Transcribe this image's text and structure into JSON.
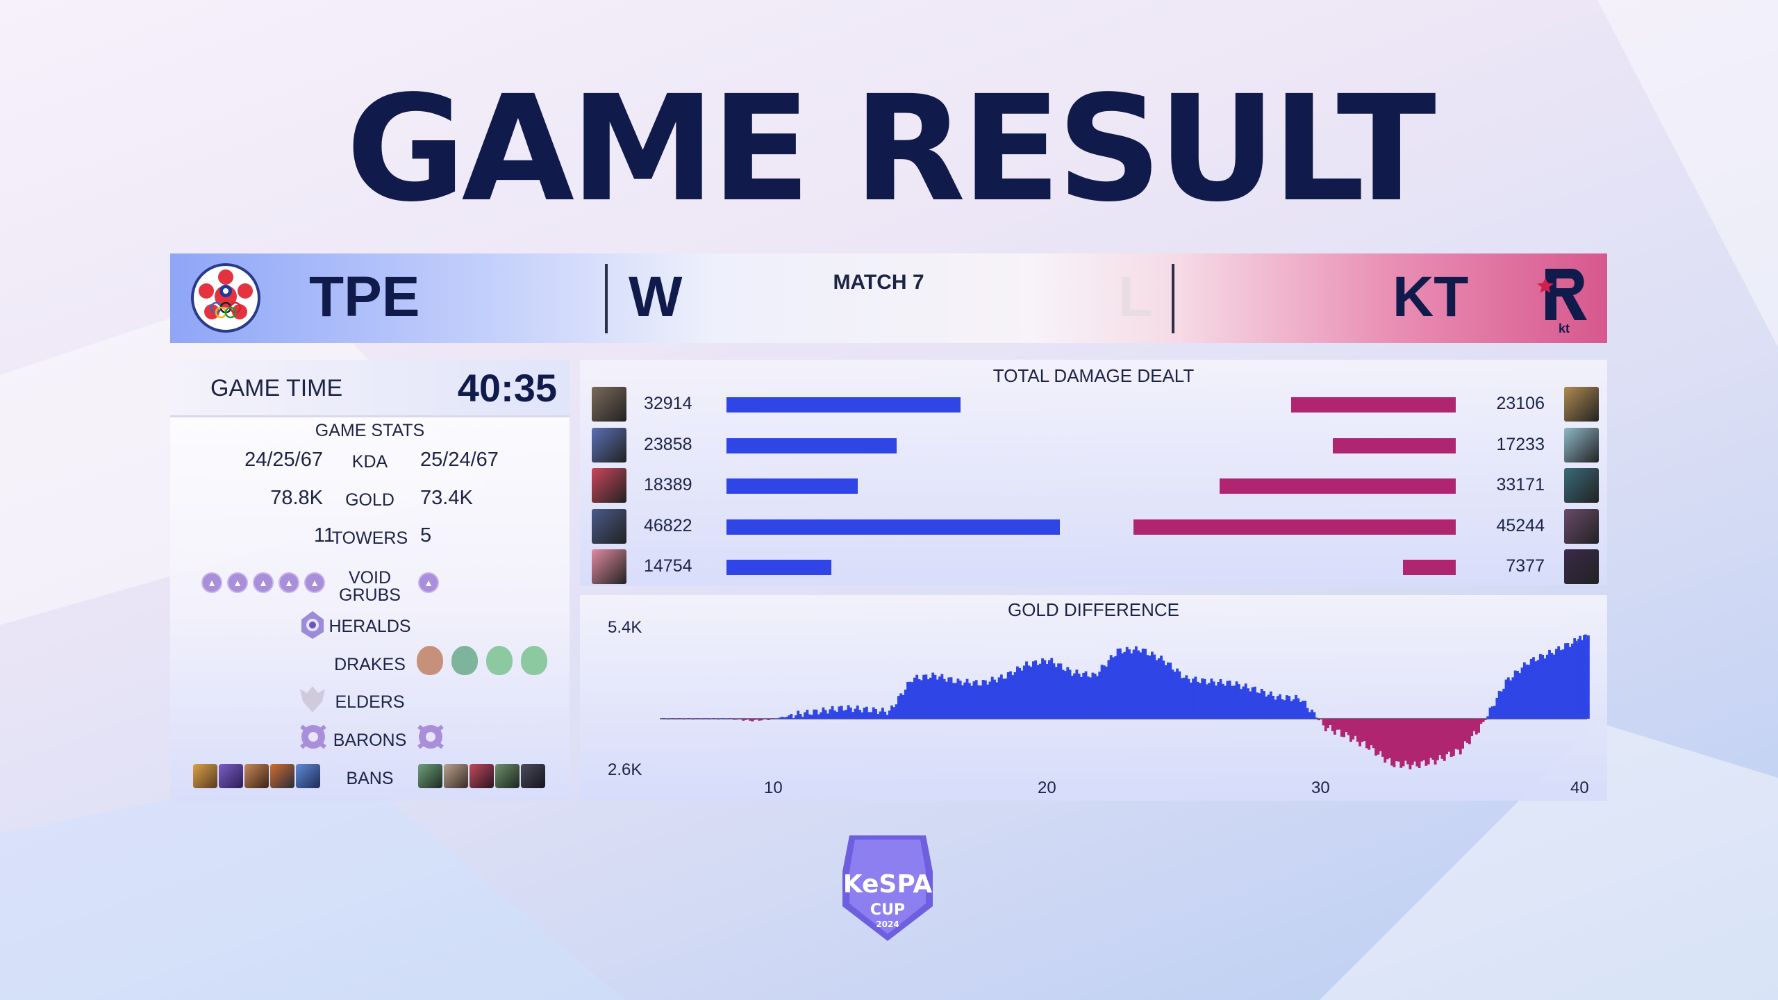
{
  "title": "GAME RESULT",
  "match": {
    "label": "MATCH 7",
    "team_left": {
      "name": "TPE",
      "result": "W",
      "color": "#2f45e6"
    },
    "team_right": {
      "name": "KT",
      "result": "L",
      "color": "#b02570",
      "logo_text": "kt"
    }
  },
  "game_time": {
    "label": "GAME TIME",
    "value": "40:35"
  },
  "game_stats": {
    "title": "GAME STATS",
    "kda": {
      "label": "KDA",
      "left": "24/25/67",
      "right": "25/24/67"
    },
    "gold": {
      "label": "GOLD",
      "left": "78.8K",
      "right": "73.4K"
    },
    "towers": {
      "label": "TOWERS",
      "left": "11",
      "right": "5"
    },
    "void_grubs": {
      "label": "VOID\nGRUBS",
      "left_count": 5,
      "right_count": 1
    },
    "heralds": {
      "label": "HERALDS",
      "left_count": 1,
      "right_count": 0
    },
    "drakes": {
      "label": "DRAKES",
      "left": [],
      "right": [
        "infernal",
        "ocean",
        "cloud",
        "cloud"
      ]
    },
    "elders": {
      "label": "ELDERS",
      "left_count": 0,
      "right_count": 0
    },
    "barons": {
      "label": "BARONS",
      "left_count": 1,
      "right_count": 1
    },
    "bans": {
      "label": "BANS",
      "left_count": 5,
      "right_count": 5
    }
  },
  "damage": {
    "title": "TOTAL DAMAGE DEALT",
    "rows": [
      {
        "left": "32914",
        "right": "23106"
      },
      {
        "left": "23858",
        "right": "17233"
      },
      {
        "left": "18389",
        "right": "33171"
      },
      {
        "left": "46822",
        "right": "45244"
      },
      {
        "left": "14754",
        "right": "7377"
      }
    ]
  },
  "chart_data": {
    "type": "area",
    "title": "GOLD DIFFERENCE",
    "y_ticks": [
      "5.4K",
      "2.6K"
    ],
    "x_ticks": [
      "10",
      "20",
      "30",
      "40"
    ],
    "xlim": [
      0,
      40.6
    ],
    "ylim": [
      -2600,
      5400
    ],
    "series": [
      {
        "colors": {
          "positive": "#2f45e6",
          "negative": "#b02570"
        },
        "x": [
          0,
          1,
          2,
          3,
          4,
          5,
          6,
          7,
          8,
          9,
          10,
          11,
          12,
          13,
          14,
          15,
          16,
          17,
          18,
          19,
          20,
          21,
          22,
          23,
          24,
          25,
          26,
          27,
          28,
          29,
          30,
          31,
          32,
          33,
          34,
          35,
          36,
          37,
          38,
          39,
          40,
          40.6
        ],
        "values": [
          0,
          0,
          0,
          0,
          -100,
          0,
          300,
          500,
          700,
          600,
          450,
          2600,
          2800,
          2400,
          2300,
          2700,
          3500,
          3800,
          3000,
          2800,
          4400,
          4500,
          3800,
          2600,
          2400,
          2300,
          1900,
          1400,
          1300,
          -400,
          -900,
          -1500,
          -2400,
          -2500,
          -2200,
          -1700,
          -300,
          2400,
          3700,
          4300,
          5000,
          5400
        ]
      }
    ]
  },
  "footer": {
    "logo_text": "KeSPA",
    "logo_sub": "CUP",
    "logo_year": "2024"
  }
}
